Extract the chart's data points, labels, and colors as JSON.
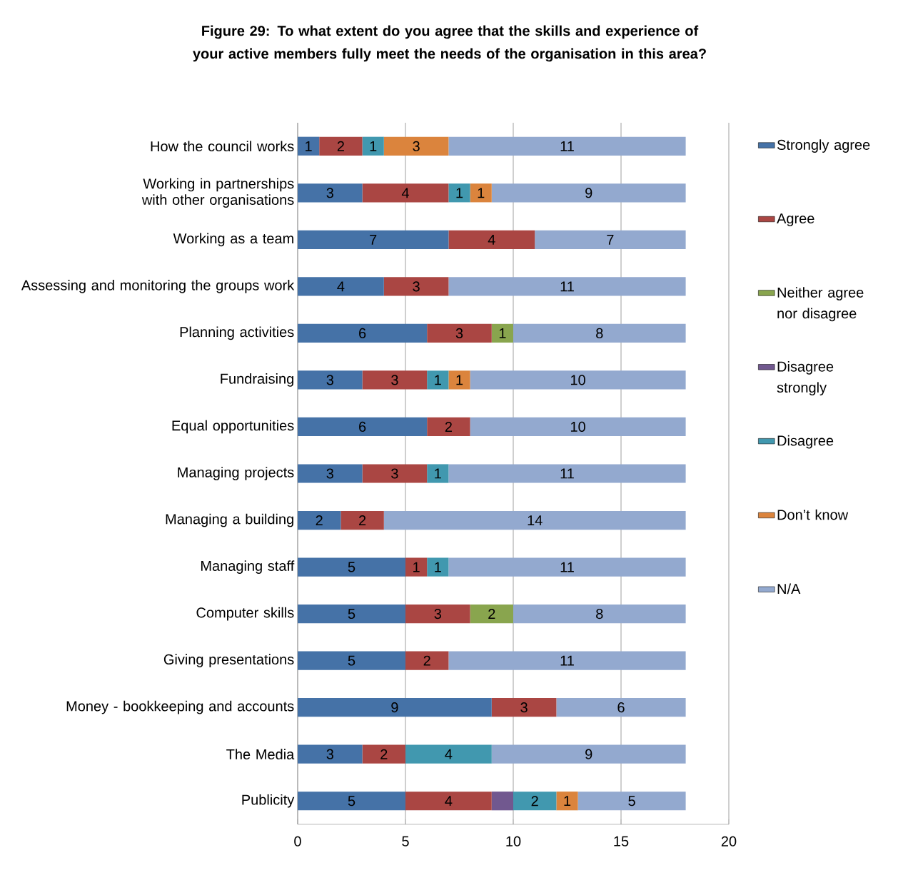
{
  "chart_data": {
    "type": "bar",
    "orientation": "horizontal",
    "stacked": true,
    "title": "Figure 29:  To what extent do you agree that the skills and experience of your active members fully meet the needs of the organisation in this area?",
    "categories": [
      "How the council works",
      "Working in partnerships with other organisations",
      "Working as a team",
      "Assessing and monitoring the groups work",
      "Planning activities",
      "Fundraising",
      "Equal opportunities",
      "Managing projects",
      "Managing a building",
      "Managing staff",
      "Computer skills",
      "Giving presentations",
      "Money - bookkeeping and accounts",
      "The Media",
      "Publicity"
    ],
    "series": [
      {
        "name": "Strongly agree",
        "color": "#4572a7",
        "values": [
          1,
          3,
          7,
          4,
          6,
          3,
          6,
          3,
          2,
          5,
          5,
          5,
          9,
          3,
          5
        ],
        "value_labels": [
          "1",
          "3",
          "7",
          "4",
          "6",
          "3",
          "6",
          "3",
          "2",
          "5",
          "5",
          "5",
          "9",
          "3",
          "5"
        ]
      },
      {
        "name": "Agree",
        "color": "#aa4643",
        "values": [
          2,
          4,
          4,
          3,
          3,
          3,
          2,
          3,
          2,
          1,
          3,
          2,
          3,
          2,
          4
        ],
        "value_labels": [
          "2",
          "4",
          "4",
          "3",
          "3",
          "3",
          "2",
          "3",
          "2",
          "1",
          "3",
          "2",
          "3",
          "2",
          "4"
        ]
      },
      {
        "name": "Neither agree nor disagree",
        "color": "#89a54e",
        "values": [
          0,
          0,
          0,
          0,
          1,
          0,
          0,
          0,
          0,
          0,
          2,
          0,
          0,
          0,
          0
        ],
        "value_labels": [
          null,
          null,
          null,
          null,
          "1",
          null,
          null,
          null,
          null,
          null,
          "2",
          null,
          null,
          null,
          null
        ]
      },
      {
        "name": "Disagree strongly",
        "color": "#71588f",
        "values": [
          0,
          0,
          0,
          0,
          0,
          0,
          0,
          0,
          0,
          0,
          0,
          0,
          0,
          0,
          1
        ],
        "value_labels": [
          null,
          null,
          null,
          null,
          null,
          null,
          null,
          null,
          null,
          null,
          null,
          null,
          null,
          null,
          null
        ]
      },
      {
        "name": "Disagree",
        "color": "#4198af",
        "values": [
          1,
          1,
          0,
          0,
          0,
          1,
          0,
          1,
          0,
          1,
          0,
          0,
          0,
          4,
          2
        ],
        "value_labels": [
          "1",
          "1",
          null,
          null,
          null,
          "1",
          null,
          "1",
          null,
          "1",
          null,
          null,
          null,
          "4",
          "2"
        ]
      },
      {
        "name": "Don’t know",
        "color": "#db843d",
        "values": [
          3,
          1,
          0,
          0,
          0,
          1,
          0,
          0,
          0,
          0,
          0,
          0,
          0,
          0,
          1
        ],
        "value_labels": [
          "3",
          "1",
          null,
          null,
          null,
          "1",
          null,
          null,
          null,
          null,
          null,
          null,
          null,
          null,
          "1"
        ]
      },
      {
        "name": "N/A",
        "color": "#93a9cf",
        "values": [
          11,
          9,
          7,
          11,
          8,
          10,
          10,
          11,
          14,
          11,
          8,
          11,
          6,
          9,
          5
        ],
        "value_labels": [
          "11",
          "9",
          "7",
          "11",
          "8",
          "10",
          "10",
          "11",
          "14",
          "11",
          "8",
          "11",
          "6",
          "9",
          "5"
        ]
      }
    ],
    "xlim": [
      0,
      20
    ],
    "xticks": [
      0,
      5,
      10,
      15,
      20
    ],
    "grid": "x",
    "legend": "right"
  }
}
